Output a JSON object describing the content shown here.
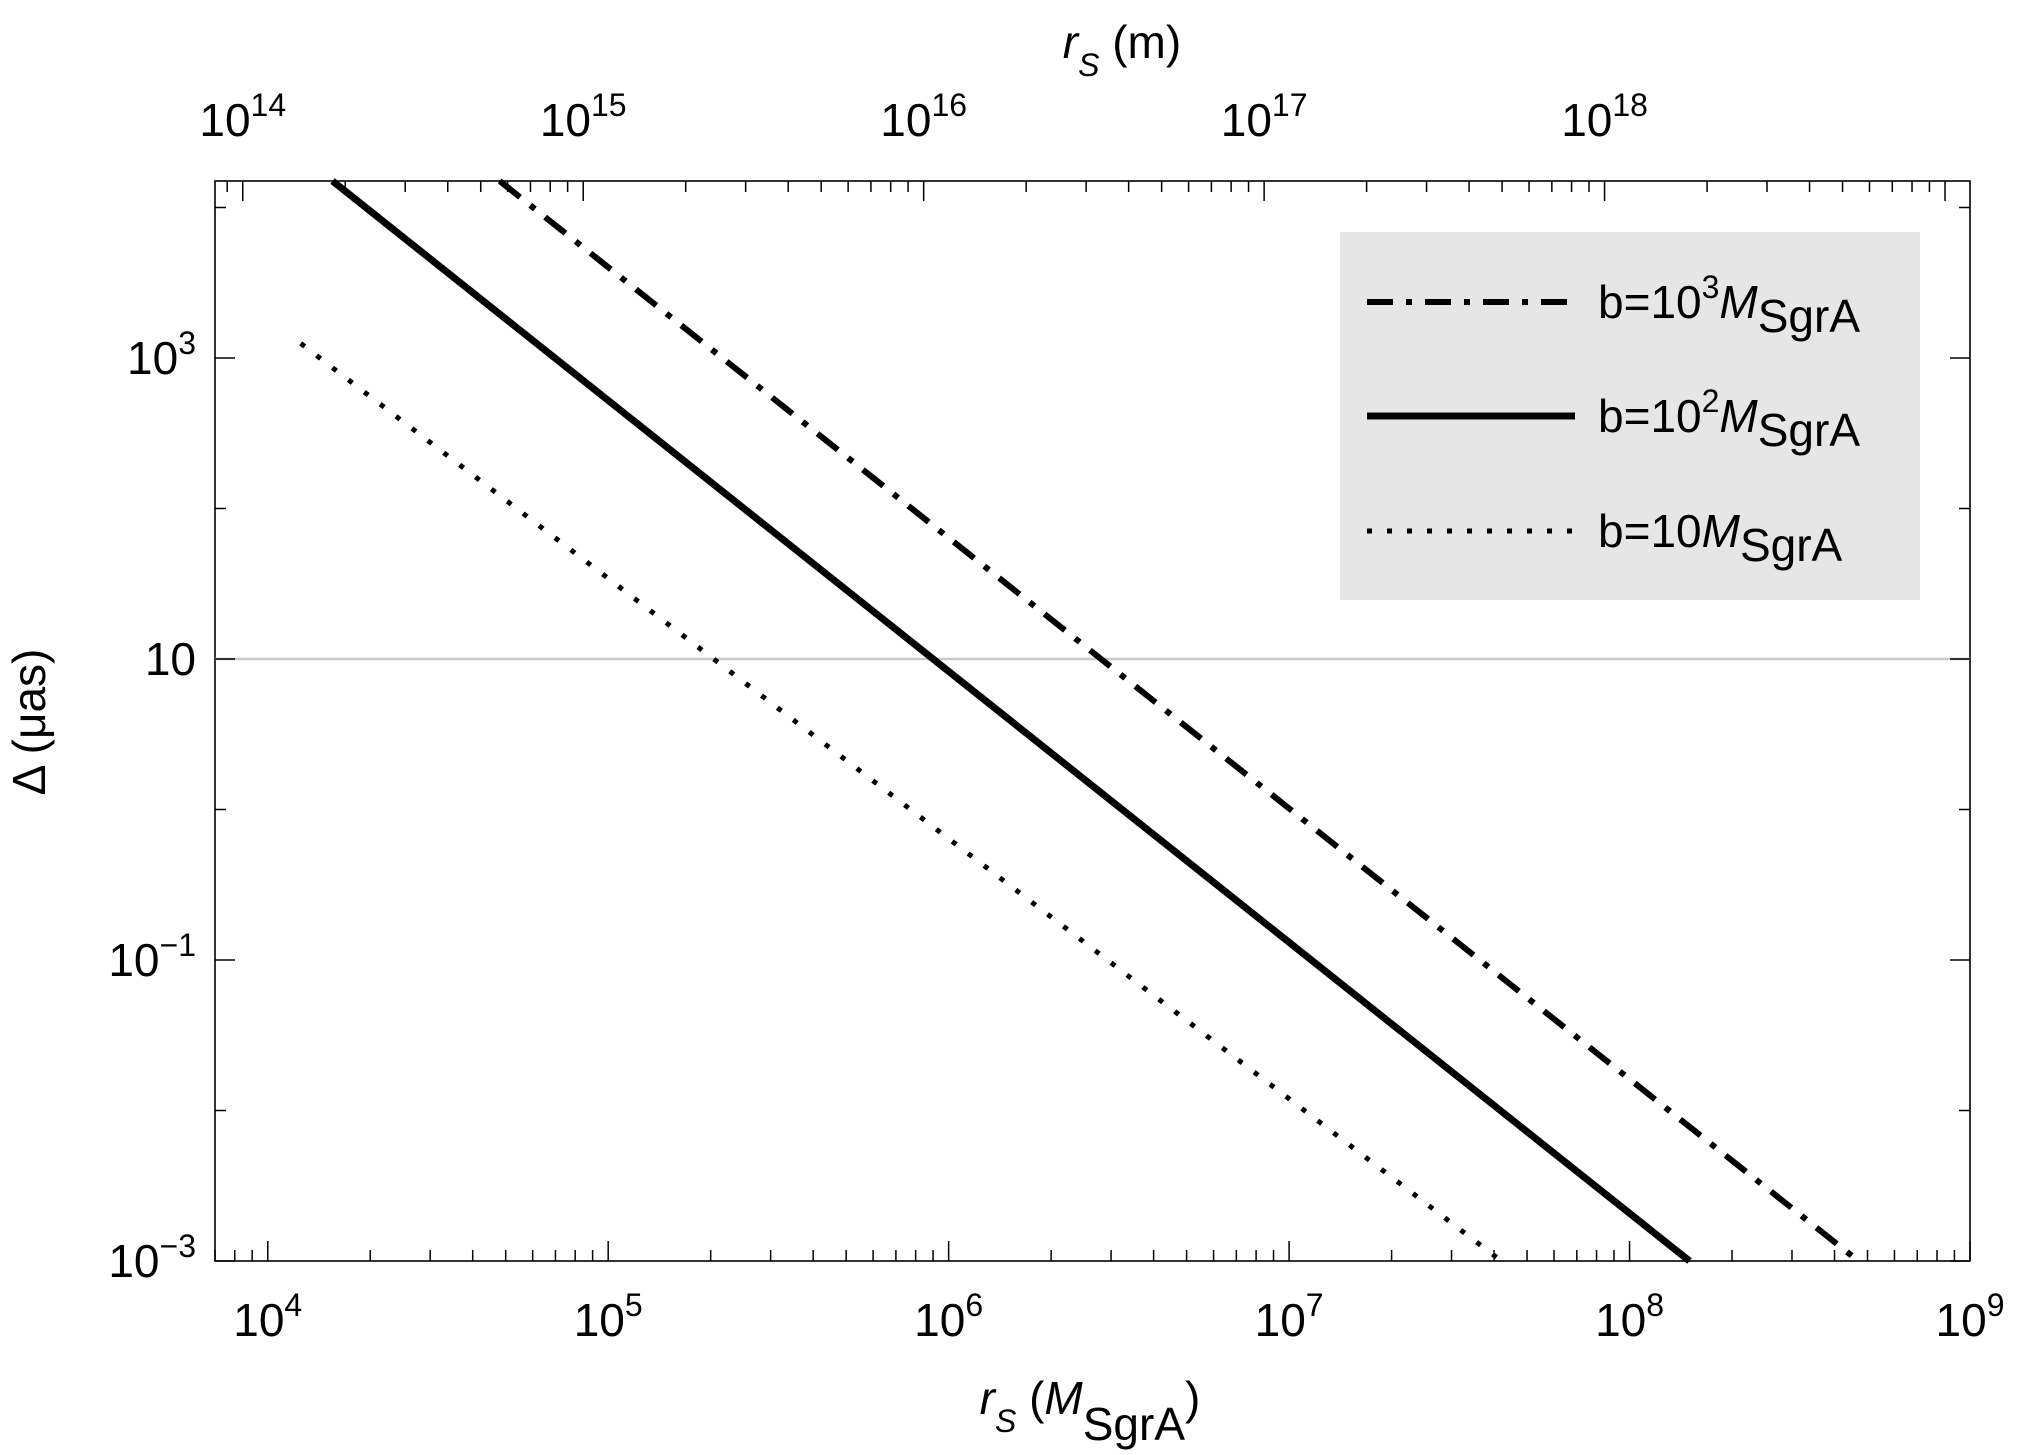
{
  "chart_data": {
    "type": "line",
    "xscale": "log",
    "yscale": "log",
    "xlim": [
      7000,
      1000000000
    ],
    "ylim": [
      0.001,
      15000
    ],
    "xlabel": {
      "italic": "r",
      "sub": "S",
      "open": " (",
      "unit": "M",
      "unit_sub": "SgrA",
      "close": ")"
    },
    "x2label": {
      "italic": "r",
      "sub": "S",
      "rest": " (m)"
    },
    "ylabel": "Δ (μas)",
    "x_ticks": [
      {
        "value": 10000,
        "base": "10",
        "exp": "4"
      },
      {
        "value": 100000,
        "base": "10",
        "exp": "5"
      },
      {
        "value": 1000000,
        "base": "10",
        "exp": "6"
      },
      {
        "value": 10000000,
        "base": "10",
        "exp": "7"
      },
      {
        "value": 100000000,
        "base": "10",
        "exp": "8"
      },
      {
        "value": 1000000000,
        "base": "10",
        "exp": "9"
      }
    ],
    "x2_meters_per_unit": 11840000000,
    "x2_ticks": [
      {
        "value": 100000000000000.0,
        "base": "10",
        "exp": "14"
      },
      {
        "value": 1000000000000000.0,
        "base": "10",
        "exp": "15"
      },
      {
        "value": 1e+16,
        "base": "10",
        "exp": "16"
      },
      {
        "value": 1e+17,
        "base": "10",
        "exp": "17"
      },
      {
        "value": 1e+18,
        "base": "10",
        "exp": "18"
      }
    ],
    "y_ticks": [
      {
        "value": 1000,
        "base": "10",
        "exp": "3"
      },
      {
        "value": 10,
        "base": "10",
        "exp": ""
      },
      {
        "value": 0.1,
        "base": "10",
        "exp": "−1"
      },
      {
        "value": 0.001,
        "base": "10",
        "exp": "−3"
      }
    ],
    "reference_line": {
      "y": 10,
      "color": "#c8c8c8"
    },
    "series": [
      {
        "name": "b=10^3 M_SgrA",
        "style": "dashdot",
        "x": [
          48000,
          470000000
        ],
        "y": [
          15000,
          0.001
        ],
        "legend": {
          "prefix": "b=10",
          "sup": "3",
          "m": "M",
          "sub": "SgrA"
        }
      },
      {
        "name": "b=10^2 M_SgrA",
        "style": "solid",
        "x": [
          15500,
          150000000
        ],
        "y": [
          15000,
          0.001
        ],
        "legend": {
          "prefix": "b=10",
          "sup": "2",
          "m": "M",
          "sub": "SgrA"
        }
      },
      {
        "name": "b=10 M_SgrA",
        "style": "dotted",
        "x": [
          12500,
          42000000
        ],
        "y": [
          1250,
          0.001
        ],
        "legend": {
          "prefix": "b=10",
          "sup": "",
          "m": "M",
          "sub": "SgrA"
        }
      }
    ],
    "legend_position": "top-right",
    "legend_background": "#e6e6e6"
  }
}
